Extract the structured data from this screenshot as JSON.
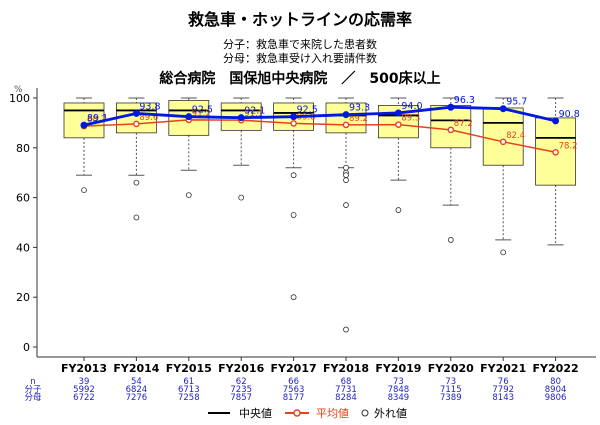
{
  "title": "救急車・ホットラインの応需率",
  "numerator_note": "分子：救急車で来院した患者数",
  "denominator_note": "分母：救急車受け入れ要請件数",
  "subtitle": "総合病院　国保旭中央病院　／　500床以上",
  "y_unit": "%",
  "colors": {
    "box_fill": "#FFFF99",
    "box_stroke": "#333333",
    "median": "#000000",
    "mean": "#E8401C",
    "hospital": "#0018E0",
    "count_text": "#2222CC"
  },
  "legend": {
    "median_label": "中央値",
    "mean_label": "平均値",
    "outlier_label": "外れ値"
  },
  "counts_labels": {
    "n": "n",
    "numerator": "分子",
    "denominator": "分母"
  },
  "chart_data": {
    "type": "boxplot",
    "ylabel": "%",
    "ylim": [
      0,
      100
    ],
    "yticks": [
      0,
      20,
      40,
      60,
      80,
      100
    ],
    "categories": [
      "FY2013",
      "FY2014",
      "FY2015",
      "FY2016",
      "FY2017",
      "FY2018",
      "FY2019",
      "FY2020",
      "FY2021",
      "FY2022"
    ],
    "boxes": [
      {
        "min": 69,
        "q1": 84,
        "median": 95,
        "q3": 98,
        "max": 100,
        "outliers": [
          63
        ]
      },
      {
        "min": 69,
        "q1": 86,
        "median": 95,
        "q3": 98,
        "max": 100,
        "outliers": [
          66,
          52
        ]
      },
      {
        "min": 71,
        "q1": 85,
        "median": 95,
        "q3": 99,
        "max": 100,
        "outliers": [
          61
        ]
      },
      {
        "min": 73,
        "q1": 87,
        "median": 95,
        "q3": 98,
        "max": 100,
        "outliers": [
          60
        ]
      },
      {
        "min": 72,
        "q1": 87,
        "median": 94,
        "q3": 98,
        "max": 100,
        "outliers": [
          69,
          53,
          20
        ]
      },
      {
        "min": 72,
        "q1": 86,
        "median": 93,
        "q3": 98,
        "max": 100,
        "outliers": [
          72,
          70,
          69,
          67,
          57,
          7
        ]
      },
      {
        "min": 67,
        "q1": 84,
        "median": 93,
        "q3": 97,
        "max": 100,
        "outliers": [
          55
        ]
      },
      {
        "min": 57,
        "q1": 80,
        "median": 91,
        "q3": 97,
        "max": 100,
        "outliers": [
          43
        ]
      },
      {
        "min": 43,
        "q1": 73,
        "median": 90,
        "q3": 96,
        "max": 100,
        "outliers": [
          38
        ]
      },
      {
        "min": 41,
        "q1": 65,
        "median": 84,
        "q3": 92,
        "max": 100,
        "outliers": []
      }
    ],
    "mean_values": [
      88.7,
      89.6,
      91.2,
      91.1,
      89.8,
      89.2,
      89.3,
      87.2,
      82.4,
      78.2
    ],
    "hospital_values": [
      89.1,
      93.8,
      92.5,
      92.1,
      92.5,
      93.3,
      94.0,
      96.3,
      95.7,
      90.8
    ],
    "counts": {
      "n": [
        39,
        54,
        61,
        62,
        66,
        68,
        73,
        73,
        76,
        80
      ],
      "numerator": [
        5992,
        6824,
        6713,
        7235,
        7563,
        7731,
        7848,
        7115,
        7792,
        8904
      ],
      "denominator": [
        6722,
        7276,
        7258,
        7857,
        8177,
        8284,
        8349,
        7389,
        8143,
        9806
      ]
    },
    "legend_position": "bottom"
  }
}
